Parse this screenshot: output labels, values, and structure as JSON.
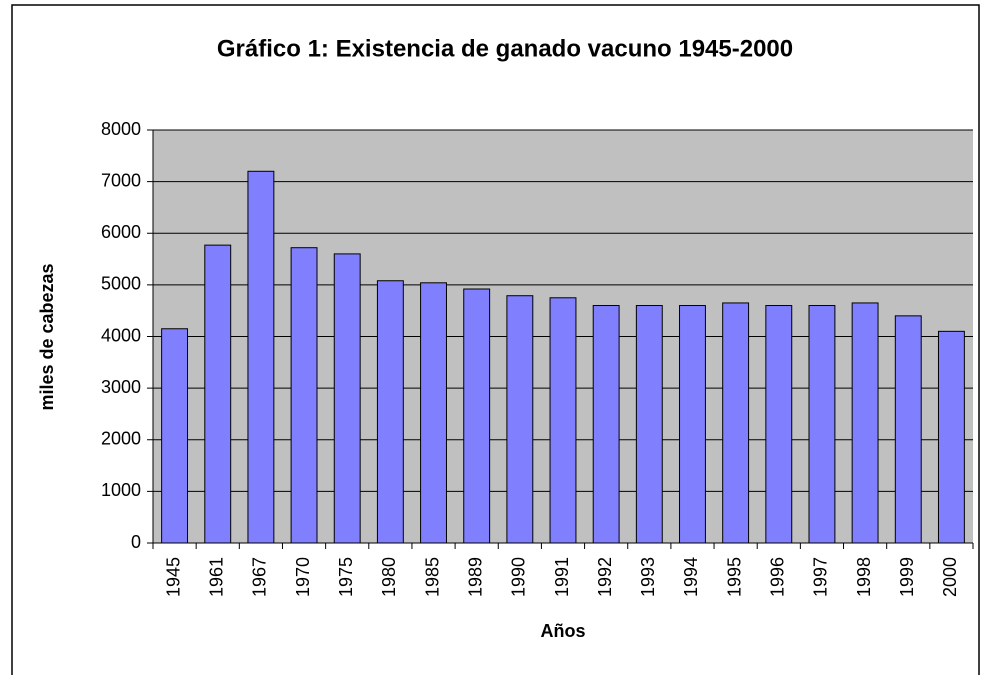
{
  "chart_data": {
    "type": "bar",
    "title": "Gráfico 1: Existencia de ganado vacuno 1945-2000",
    "x_label": "Años",
    "y_label": "miles de cabezas",
    "categories": [
      "1945",
      "1961",
      "1967",
      "1970",
      "1975",
      "1980",
      "1985",
      "1989",
      "1990",
      "1991",
      "1992",
      "1993",
      "1994",
      "1995",
      "1996",
      "1997",
      "1998",
      "1999",
      "2000"
    ],
    "values": [
      4150,
      5770,
      7200,
      5720,
      5600,
      5080,
      5040,
      4920,
      4790,
      4750,
      4600,
      4600,
      4600,
      4650,
      4600,
      4600,
      4650,
      4400,
      4100
    ],
    "color": "#8080ff",
    "ylim": [
      0,
      8000
    ],
    "yticks": [
      0,
      1000,
      2000,
      3000,
      4000,
      5000,
      6000,
      7000,
      8000
    ],
    "grid": true
  }
}
